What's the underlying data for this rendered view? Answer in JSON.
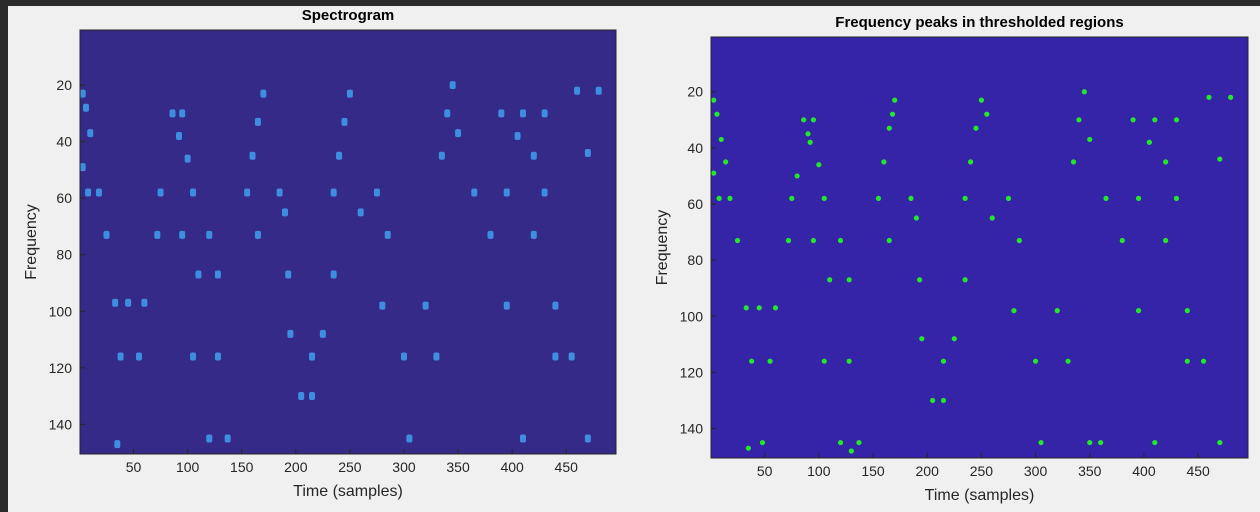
{
  "chart_data": [
    {
      "type": "image",
      "title": "Spectrogram",
      "xlabel": "Time (samples)",
      "ylabel": "Frequency",
      "background": "#352a87",
      "color": "#3fa0f0",
      "xlim": [
        0.5,
        496
      ],
      "ylim": [
        0.5,
        150.5
      ],
      "y_reversed": true,
      "xticks": [
        50,
        100,
        150,
        200,
        250,
        300,
        350,
        400,
        450
      ],
      "yticks": [
        20,
        40,
        60,
        80,
        100,
        120,
        140
      ],
      "x": [
        3,
        6,
        10,
        3,
        8,
        18,
        25,
        33,
        45,
        60,
        38,
        55,
        35,
        86,
        95,
        92,
        100,
        75,
        105,
        72,
        95,
        120,
        110,
        128,
        105,
        128,
        120,
        137,
        170,
        165,
        160,
        155,
        185,
        190,
        165,
        193,
        235,
        195,
        225,
        205,
        215,
        215,
        250,
        245,
        240,
        235,
        275,
        260,
        285,
        280,
        320,
        300,
        330,
        305,
        345,
        340,
        350,
        335,
        365,
        390,
        410,
        430,
        405,
        420,
        395,
        430,
        460,
        480,
        470,
        470,
        380,
        420,
        455,
        440,
        395,
        440,
        410
      ],
      "y": [
        23,
        28,
        37,
        49,
        58,
        58,
        73,
        97,
        97,
        97,
        116,
        116,
        147,
        30,
        30,
        38,
        46,
        58,
        58,
        73,
        73,
        73,
        87,
        87,
        116,
        116,
        145,
        145,
        23,
        33,
        45,
        58,
        58,
        65,
        73,
        87,
        87,
        108,
        108,
        130,
        130,
        116,
        23,
        33,
        45,
        58,
        58,
        65,
        73,
        98,
        98,
        116,
        116,
        145,
        20,
        30,
        37,
        45,
        58,
        30,
        30,
        30,
        38,
        45,
        58,
        58,
        22,
        22,
        44,
        145,
        73,
        73,
        116,
        116,
        98,
        98,
        145
      ]
    },
    {
      "type": "scatter",
      "title": "Frequency peaks in thresholded regions",
      "xlabel": "Time (samples)",
      "ylabel": "Frequency",
      "background": "#3524a8",
      "color": "#22e82a",
      "xlim": [
        0.5,
        496
      ],
      "ylim": [
        0.5,
        150.5
      ],
      "y_reversed": true,
      "xticks": [
        50,
        100,
        150,
        200,
        250,
        300,
        350,
        400,
        450
      ],
      "yticks": [
        20,
        40,
        60,
        80,
        100,
        120,
        140
      ],
      "x": [
        3,
        6,
        10,
        14,
        3,
        8,
        18,
        25,
        33,
        45,
        60,
        38,
        55,
        35,
        48,
        86,
        90,
        95,
        92,
        100,
        75,
        80,
        105,
        72,
        95,
        120,
        110,
        128,
        105,
        128,
        120,
        130,
        137,
        170,
        168,
        165,
        160,
        155,
        185,
        190,
        165,
        193,
        235,
        195,
        225,
        205,
        215,
        215,
        250,
        255,
        245,
        240,
        235,
        275,
        260,
        285,
        280,
        320,
        300,
        330,
        305,
        345,
        340,
        350,
        335,
        365,
        390,
        410,
        430,
        405,
        420,
        395,
        430,
        460,
        480,
        470,
        470,
        380,
        420,
        455,
        440,
        395,
        440,
        410,
        350,
        360
      ],
      "y": [
        23,
        28,
        37,
        45,
        49,
        58,
        58,
        73,
        97,
        97,
        97,
        116,
        116,
        147,
        145,
        30,
        35,
        30,
        38,
        46,
        58,
        50,
        58,
        73,
        73,
        73,
        87,
        87,
        116,
        116,
        145,
        148,
        145,
        23,
        28,
        33,
        45,
        58,
        58,
        65,
        73,
        87,
        87,
        108,
        108,
        130,
        130,
        116,
        23,
        28,
        33,
        45,
        58,
        58,
        65,
        73,
        98,
        98,
        116,
        116,
        145,
        20,
        30,
        37,
        45,
        58,
        30,
        30,
        30,
        38,
        45,
        58,
        58,
        22,
        22,
        44,
        145,
        73,
        73,
        116,
        116,
        98,
        98,
        145,
        145,
        145
      ]
    }
  ]
}
